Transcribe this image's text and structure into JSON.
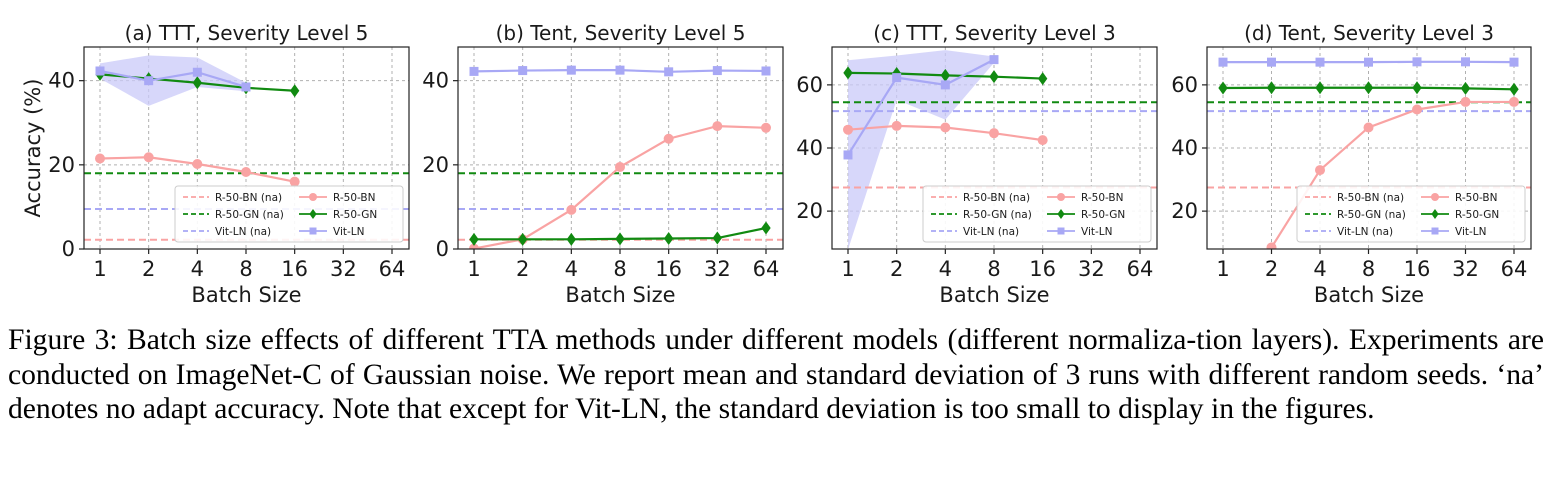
{
  "figure": {
    "x_axis_label": "Batch Size",
    "y_axis_label": "Accuracy (%)",
    "caption": "Figure 3: Batch size effects of different TTA methods under different models (different normaliza-­tion layers). Experiments are conducted on ImageNet-C of Gaussian noise. We report mean and standard deviation of 3 runs with different random seeds. ‘na’ denotes no adapt accuracy. Note that except for Vit-LN, the standard deviation is too small to display in the figures."
  },
  "colors": {
    "r50bn": "#f9a3a3",
    "r50gn": "#118a11",
    "vitln": "#a8a8f5",
    "band": "#c9c9f8"
  },
  "legend_labels": {
    "r50bn_na": "R-50-BN (na)",
    "r50gn_na": "R-50-GN (na)",
    "vitln_na": "Vit-LN (na)",
    "r50bn": "R-50-BN",
    "r50gn": "R-50-GN",
    "vitln": "Vit-LN"
  },
  "chart_data": [
    {
      "type": "line",
      "title": "(a) TTT, Severity Level 5",
      "xlabel": "Batch Size",
      "ylabel": "Accuracy (%)",
      "x_scale": "log2",
      "categories": [
        "1",
        "2",
        "4",
        "8",
        "16",
        "32",
        "64"
      ],
      "ylim": [
        0,
        48
      ],
      "yticks": [
        0,
        20,
        40
      ],
      "grid": true,
      "legend_position": "lower-right",
      "baselines": [
        {
          "name": "R-50-BN (na)",
          "value": 2.2
        },
        {
          "name": "R-50-GN (na)",
          "value": 18.0
        },
        {
          "name": "Vit-LN (na)",
          "value": 9.5
        }
      ],
      "series": [
        {
          "name": "R-50-BN",
          "values": [
            21.5,
            21.8,
            20.2,
            18.3,
            16.0,
            null,
            null
          ]
        },
        {
          "name": "R-50-GN",
          "values": [
            41.5,
            40.5,
            39.5,
            38.3,
            37.6,
            null,
            null
          ]
        },
        {
          "name": "Vit-LN",
          "values": [
            42.3,
            40.0,
            42.0,
            38.5,
            null,
            null,
            null
          ],
          "std": [
            1.8,
            6.0,
            3.5,
            1.0,
            null,
            null,
            null
          ]
        }
      ]
    },
    {
      "type": "line",
      "title": "(b) Tent, Severity Level 5",
      "xlabel": "Batch Size",
      "ylabel": "",
      "x_scale": "log2",
      "categories": [
        "1",
        "2",
        "4",
        "8",
        "16",
        "32",
        "64"
      ],
      "ylim": [
        0,
        48
      ],
      "yticks": [
        0,
        20,
        40
      ],
      "grid": true,
      "legend_position": "none",
      "baselines": [
        {
          "name": "R-50-BN (na)",
          "value": 2.2
        },
        {
          "name": "R-50-GN (na)",
          "value": 18.0
        },
        {
          "name": "Vit-LN (na)",
          "value": 9.5
        }
      ],
      "series": [
        {
          "name": "R-50-BN",
          "values": [
            0.1,
            2.3,
            9.3,
            19.5,
            26.2,
            29.2,
            28.8
          ]
        },
        {
          "name": "R-50-GN",
          "values": [
            2.3,
            2.3,
            2.3,
            2.4,
            2.5,
            2.6,
            5.0
          ]
        },
        {
          "name": "Vit-LN",
          "values": [
            42.2,
            42.4,
            42.5,
            42.5,
            42.1,
            42.4,
            42.3
          ]
        }
      ]
    },
    {
      "type": "line",
      "title": "(c) TTT, Severity Level 3",
      "xlabel": "Batch Size",
      "ylabel": "",
      "x_scale": "log2",
      "categories": [
        "1",
        "2",
        "4",
        "8",
        "16",
        "32",
        "64"
      ],
      "ylim": [
        8,
        72
      ],
      "yticks": [
        20,
        40,
        60
      ],
      "grid": true,
      "legend_position": "lower-right",
      "baselines": [
        {
          "name": "R-50-BN (na)",
          "value": 27.5
        },
        {
          "name": "R-50-GN (na)",
          "value": 54.5
        },
        {
          "name": "Vit-LN (na)",
          "value": 51.7
        }
      ],
      "series": [
        {
          "name": "R-50-BN",
          "values": [
            45.8,
            47.0,
            46.5,
            44.7,
            42.5,
            null,
            null
          ]
        },
        {
          "name": "R-50-GN",
          "values": [
            63.8,
            63.6,
            63.0,
            62.6,
            62.0,
            null,
            null
          ]
        },
        {
          "name": "Vit-LN",
          "values": [
            37.8,
            62.3,
            60.0,
            68.0,
            null,
            null,
            null
          ],
          "std": [
            30.0,
            7.0,
            11.0,
            1.0,
            null,
            null,
            null
          ]
        }
      ]
    },
    {
      "type": "line",
      "title": "(d) Tent, Severity Level 3",
      "xlabel": "Batch Size",
      "ylabel": "",
      "x_scale": "log2",
      "categories": [
        "1",
        "2",
        "4",
        "8",
        "16",
        "32",
        "64"
      ],
      "ylim": [
        8,
        72
      ],
      "yticks": [
        20,
        40,
        60
      ],
      "grid": true,
      "legend_position": "lower-right",
      "baselines": [
        {
          "name": "R-50-BN (na)",
          "value": 27.5
        },
        {
          "name": "R-50-GN (na)",
          "value": 54.5
        },
        {
          "name": "Vit-LN (na)",
          "value": 51.7
        }
      ],
      "series": [
        {
          "name": "R-50-BN",
          "values": [
            null,
            8.5,
            33.0,
            46.5,
            52.2,
            54.6,
            54.6
          ]
        },
        {
          "name": "R-50-GN",
          "values": [
            59.0,
            59.1,
            59.1,
            59.1,
            59.1,
            58.9,
            58.6
          ]
        },
        {
          "name": "Vit-LN",
          "values": [
            67.2,
            67.2,
            67.2,
            67.2,
            67.3,
            67.3,
            67.2
          ]
        }
      ]
    }
  ]
}
